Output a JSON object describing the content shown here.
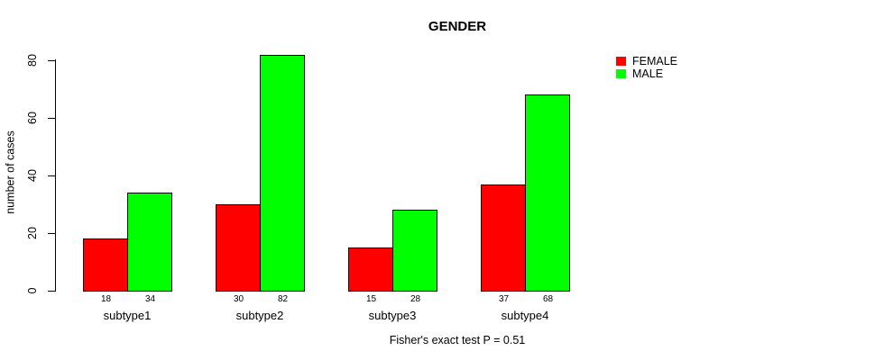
{
  "title": "GENDER",
  "caption": "Fisher's exact test P = 0.51",
  "y_axis": {
    "label": "number of cases",
    "ticks": [
      0,
      20,
      40,
      60,
      80
    ]
  },
  "legend": {
    "items": [
      {
        "label": "FEMALE",
        "color": "#ff0000"
      },
      {
        "label": "MALE",
        "color": "#00ff00"
      }
    ]
  },
  "chart_data": {
    "type": "bar",
    "title": "GENDER",
    "xlabel": "",
    "ylabel": "number of cases",
    "categories": [
      "subtype1",
      "subtype2",
      "subtype3",
      "subtype4"
    ],
    "series": [
      {
        "name": "FEMALE",
        "color": "#ff0000",
        "values": [
          18,
          30,
          15,
          37
        ]
      },
      {
        "name": "MALE",
        "color": "#00ff00",
        "values": [
          34,
          82,
          28,
          68
        ]
      }
    ],
    "bar_value_labels_shown": true,
    "yticks": [
      0,
      20,
      40,
      60,
      80
    ],
    "ylim": [
      0,
      85
    ],
    "grid": false,
    "legend_position": "top-right",
    "annotation": "Fisher's exact test P = 0.51"
  }
}
